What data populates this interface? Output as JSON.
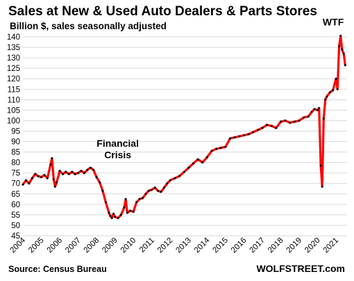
{
  "chart_data": {
    "type": "line",
    "title": "Sales at New & Used Auto Dealers & Parts Stores",
    "subtitle": "Billion $, sales seasonally adjusted",
    "ylim": [
      45,
      142
    ],
    "yticks": [
      45,
      50,
      55,
      60,
      65,
      70,
      75,
      80,
      85,
      90,
      95,
      100,
      105,
      110,
      115,
      120,
      125,
      130,
      135,
      140
    ],
    "xlim": [
      2004.0,
      2021.6
    ],
    "xticks": [
      "2004",
      "2005",
      "2006",
      "2007",
      "2008",
      "2009",
      "2010",
      "2011",
      "2012",
      "2013",
      "2014",
      "2015",
      "2016",
      "2017",
      "2018",
      "2019",
      "2020",
      "2021"
    ],
    "grid": true,
    "series": [
      {
        "color": "#ff0000",
        "marker_color": "#000000",
        "x": [
          2004.0,
          2004.17,
          2004.33,
          2004.5,
          2004.67,
          2004.83,
          2005.0,
          2005.17,
          2005.33,
          2005.5,
          2005.58,
          2005.67,
          2005.75,
          2005.83,
          2006.0,
          2006.17,
          2006.33,
          2006.5,
          2006.67,
          2006.83,
          2007.0,
          2007.17,
          2007.33,
          2007.5,
          2007.67,
          2007.83,
          2008.0,
          2008.17,
          2008.33,
          2008.5,
          2008.67,
          2008.75,
          2008.83,
          2008.92,
          2009.0,
          2009.17,
          2009.33,
          2009.5,
          2009.58,
          2009.67,
          2009.83,
          2010.0,
          2010.17,
          2010.33,
          2010.5,
          2010.67,
          2010.83,
          2011.0,
          2011.17,
          2011.33,
          2011.5,
          2011.67,
          2011.83,
          2012.0,
          2012.25,
          2012.5,
          2012.75,
          2013.0,
          2013.25,
          2013.5,
          2013.75,
          2014.0,
          2014.25,
          2014.5,
          2014.75,
          2015.0,
          2015.25,
          2015.5,
          2015.75,
          2016.0,
          2016.25,
          2016.5,
          2016.75,
          2017.0,
          2017.25,
          2017.5,
          2017.75,
          2018.0,
          2018.25,
          2018.5,
          2018.75,
          2019.0,
          2019.25,
          2019.5,
          2019.67,
          2019.83,
          2020.0,
          2020.08,
          2020.17,
          2020.25,
          2020.33,
          2020.42,
          2020.5,
          2020.67,
          2020.83,
          2021.0,
          2021.08,
          2021.17,
          2021.25,
          2021.33,
          2021.42,
          2021.5
        ],
        "values": [
          69.5,
          71.5,
          70.0,
          72.5,
          74.5,
          73.5,
          73.0,
          74.0,
          72.5,
          79.0,
          82.0,
          72.0,
          68.5,
          70.5,
          76.0,
          74.5,
          75.5,
          74.5,
          75.5,
          74.5,
          75.0,
          76.0,
          75.0,
          76.5,
          77.5,
          76.5,
          73.0,
          70.5,
          66.5,
          61.0,
          56.0,
          54.5,
          53.5,
          55.5,
          54.0,
          53.5,
          55.0,
          58.5,
          62.5,
          56.0,
          57.0,
          56.5,
          61.0,
          62.5,
          63.0,
          65.0,
          66.5,
          67.0,
          68.0,
          66.5,
          66.0,
          68.0,
          70.0,
          71.5,
          72.5,
          73.5,
          75.5,
          77.5,
          79.5,
          81.5,
          80.0,
          82.5,
          85.5,
          86.5,
          87.0,
          87.5,
          91.5,
          92.0,
          92.5,
          93.0,
          93.5,
          94.5,
          95.5,
          96.5,
          98.0,
          97.5,
          96.5,
          99.5,
          100.0,
          99.0,
          99.5,
          100.0,
          101.5,
          102.0,
          104.0,
          105.5,
          105.0,
          106.0,
          78.5,
          68.5,
          101.0,
          110.0,
          111.5,
          113.5,
          114.5,
          120.0,
          115.0,
          135.5,
          140.5,
          134.0,
          132.0,
          126.5
        ]
      }
    ],
    "annotations": [
      {
        "text": "Financial",
        "x": 2009.15,
        "y": 87.5
      },
      {
        "text": "Crisis",
        "x": 2009.15,
        "y": 82.0
      },
      {
        "text": "WTF",
        "x": 2020.85,
        "y": 145.5
      }
    ],
    "source": "Source: Census Bureau",
    "brand": "WOLFSTREET.com"
  }
}
